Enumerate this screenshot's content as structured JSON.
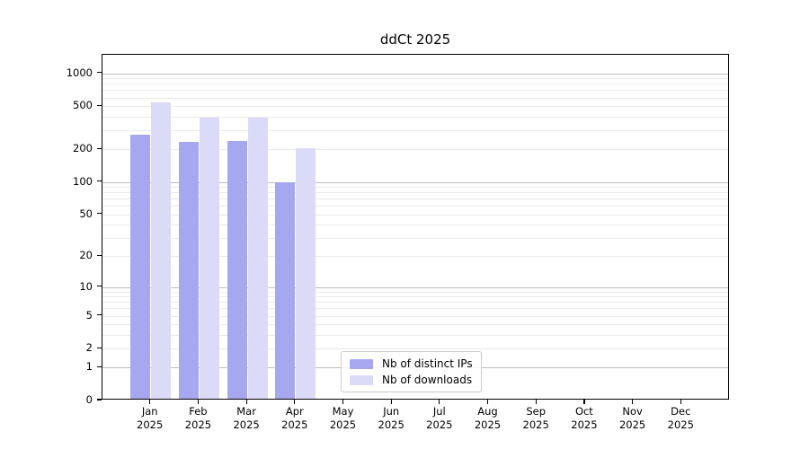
{
  "chart_data": {
    "type": "bar",
    "title": "ddCt 2025",
    "categories": [
      "Jan",
      "Feb",
      "Mar",
      "Apr",
      "May",
      "Jun",
      "Jul",
      "Aug",
      "Sep",
      "Oct",
      "Nov",
      "Dec"
    ],
    "category_year": "2025",
    "series": [
      {
        "name": "Nb of distinct IPs",
        "color": "#a7a7f0",
        "values": [
          265,
          225,
          230,
          95,
          0,
          0,
          0,
          0,
          0,
          0,
          0,
          0
        ]
      },
      {
        "name": "Nb of downloads",
        "color": "#dbdbf8",
        "values": [
          520,
          378,
          380,
          199,
          0,
          0,
          0,
          0,
          0,
          0,
          0,
          0
        ]
      }
    ],
    "y_axis": {
      "scale": "log10(1+y)",
      "tick_labels": [
        "0",
        "1",
        "2",
        "5",
        "10",
        "20",
        "50",
        "100",
        "200",
        "500",
        "1000"
      ],
      "tick_values": [
        0,
        1,
        2,
        5,
        10,
        20,
        50,
        100,
        200,
        500,
        1000
      ],
      "major_gridlines": [
        1,
        10,
        100,
        1000
      ],
      "minor_gridlines": [
        2,
        3,
        4,
        5,
        6,
        7,
        8,
        9,
        20,
        30,
        40,
        50,
        60,
        70,
        80,
        90,
        200,
        300,
        400,
        500,
        600,
        700,
        800,
        900
      ],
      "ymax": 1480
    },
    "x_axis": {
      "label_lines_per_tick": 2
    },
    "legend": {
      "position": "lower-center-left",
      "entries": [
        "Nb of distinct IPs",
        "Nb of downloads"
      ]
    },
    "grid": true,
    "colors": {
      "major_grid": "#bdbdbd",
      "minor_grid": "#eaeaea",
      "spine": "#000000",
      "text": "#000000",
      "background": "#ffffff"
    }
  }
}
